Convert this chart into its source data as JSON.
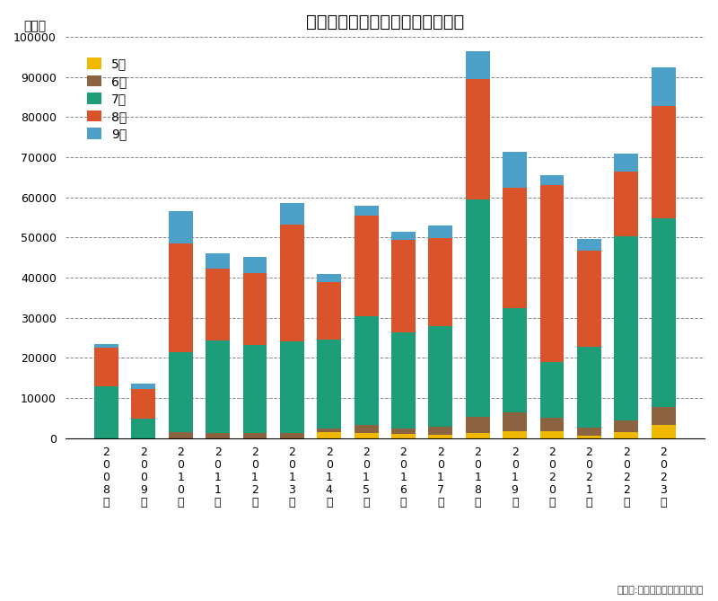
{
  "title": "熱中症による救急搬送者数の推移",
  "ylabel": "（件）",
  "source": "（出典:総務省、消防庁を改変）",
  "years": [
    "2008",
    "2009",
    "2010",
    "2011",
    "2012",
    "2013",
    "2014",
    "2015",
    "2016",
    "2017",
    "2018",
    "2019",
    "2020",
    "2021",
    "2022",
    "2023"
  ],
  "months": [
    "5月",
    "6月",
    "7月",
    "8月",
    "9月"
  ],
  "colors": [
    "#f0b800",
    "#8b6340",
    "#1e9e78",
    "#d9542b",
    "#4da0c8"
  ],
  "data": {
    "5月": [
      0,
      0,
      0,
      0,
      0,
      0,
      1500,
      1200,
      1000,
      900,
      1200,
      1800,
      1800,
      600,
      1500,
      3200
    ],
    "6月": [
      0,
      0,
      1500,
      1300,
      1200,
      1200,
      1000,
      2200,
      1400,
      2000,
      4200,
      4600,
      3200,
      2100,
      2900,
      4500
    ],
    "7月": [
      13000,
      4800,
      20000,
      23000,
      22000,
      23000,
      22000,
      27000,
      24000,
      25000,
      54000,
      26000,
      14000,
      20000,
      46000,
      47000
    ],
    "8月": [
      9500,
      7500,
      27000,
      18000,
      18000,
      29000,
      14500,
      25000,
      23000,
      22000,
      30000,
      30000,
      44000,
      24000,
      16000,
      28000
    ],
    "9月": [
      1000,
      1200,
      8000,
      3800,
      4000,
      5500,
      2000,
      2500,
      2000,
      3200,
      7000,
      9000,
      2500,
      3000,
      4500,
      9800
    ]
  },
  "ylim": [
    0,
    100000
  ],
  "yticks": [
    0,
    10000,
    20000,
    30000,
    40000,
    50000,
    60000,
    70000,
    80000,
    90000,
    100000
  ],
  "background_color": "#ffffff",
  "grid_color": "#888888",
  "title_fontsize": 14,
  "label_fontsize": 10,
  "tick_fontsize": 9
}
